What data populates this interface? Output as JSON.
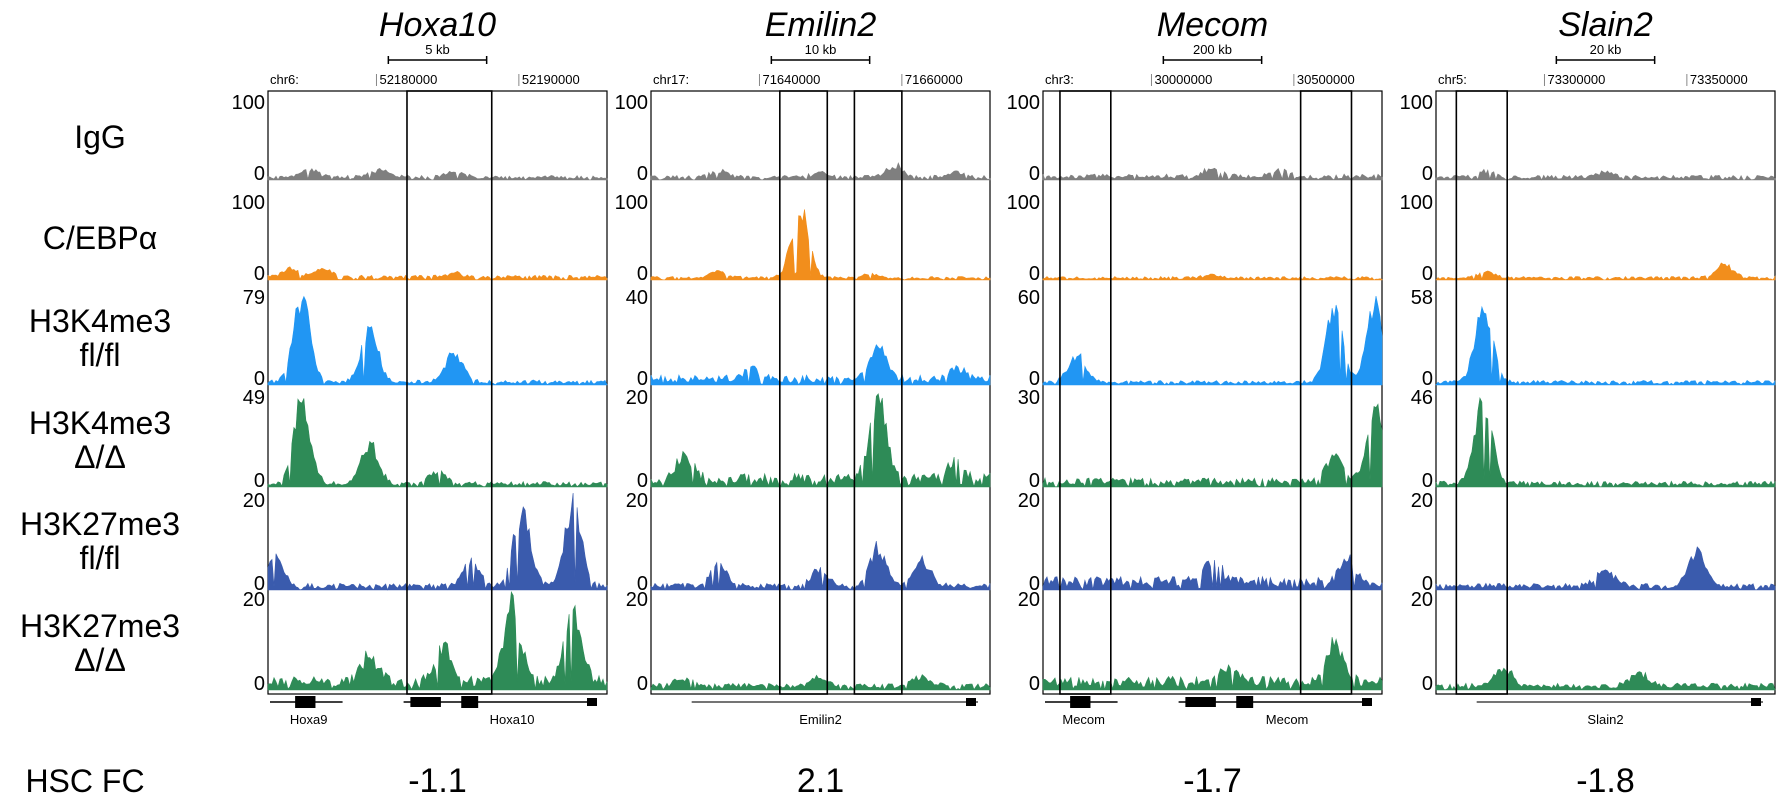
{
  "footer_label": "HSC FC",
  "tracks": [
    {
      "label_lines": [
        "IgG"
      ],
      "color": "#7f7f7f"
    },
    {
      "label_lines": [
        "C/EBPα"
      ],
      "color": "#f28e1c"
    },
    {
      "label_lines": [
        "H3K4me3",
        "fl/fl"
      ],
      "color": "#2196f3"
    },
    {
      "label_lines": [
        "H3K4me3",
        "Δ/Δ"
      ],
      "color": "#2e8b57"
    },
    {
      "label_lines": [
        "H3K27me3",
        "fl/fl"
      ],
      "color": "#3a5bad"
    },
    {
      "label_lines": [
        "H3K27me3",
        "Δ/Δ"
      ],
      "color": "#2e8b57"
    }
  ],
  "chart_data": [
    {
      "type": "area",
      "gene": "Hoxa10",
      "chrom_label": "chr6:",
      "coord_ticks": [
        "52180000",
        "52190000"
      ],
      "scale_bar_label": "5 kb",
      "track_ranges": [
        [
          0,
          100
        ],
        [
          0,
          100
        ],
        [
          0,
          79
        ],
        [
          0,
          49
        ],
        [
          0,
          20
        ],
        [
          0,
          20
        ]
      ],
      "highlight_regions": [
        [
          0.41,
          0.66
        ]
      ],
      "gene_models": [
        "Hoxa9",
        "Hoxa10"
      ],
      "hsc_fc": "-1.1",
      "signal_profiles": [
        {
          "track": "IgG",
          "peaks": [
            [
              0.12,
              10
            ],
            [
              0.33,
              10
            ],
            [
              0.55,
              7
            ]
          ],
          "baseline": 4
        },
        {
          "track": "C/EBPα",
          "peaks": [
            [
              0.07,
              11
            ],
            [
              0.17,
              11
            ],
            [
              0.55,
              5
            ]
          ],
          "baseline": 4
        },
        {
          "track": "H3K4me3 fl/fl",
          "peaks": [
            [
              0.1,
              75
            ],
            [
              0.3,
              48
            ],
            [
              0.55,
              28
            ]
          ],
          "baseline": 3
        },
        {
          "track": "H3K4me3 Δ/Δ",
          "peaks": [
            [
              0.1,
              47
            ],
            [
              0.3,
              22
            ],
            [
              0.5,
              6
            ]
          ],
          "baseline": 2
        },
        {
          "track": "H3K27me3 fl/fl",
          "peaks": [
            [
              0.02,
              7
            ],
            [
              0.6,
              6
            ],
            [
              0.75,
              17
            ],
            [
              0.9,
              18
            ]
          ],
          "baseline": 1
        },
        {
          "track": "H3K27me3 Δ/Δ",
          "peaks": [
            [
              0.3,
              6
            ],
            [
              0.52,
              8
            ],
            [
              0.72,
              18
            ],
            [
              0.9,
              17
            ]
          ],
          "baseline": 2
        }
      ]
    },
    {
      "type": "area",
      "gene": "Emilin2",
      "chrom_label": "chr17:",
      "coord_ticks": [
        "71640000",
        "71660000"
      ],
      "scale_bar_label": "10 kb",
      "track_ranges": [
        [
          0,
          100
        ],
        [
          0,
          100
        ],
        [
          0,
          40
        ],
        [
          0,
          20
        ],
        [
          0,
          20
        ],
        [
          0,
          20
        ]
      ],
      "highlight_regions": [
        [
          0.38,
          0.52
        ],
        [
          0.6,
          0.74
        ]
      ],
      "gene_models": [
        "Emilin2"
      ],
      "hsc_fc": "2.1",
      "signal_profiles": [
        {
          "track": "IgG",
          "peaks": [
            [
              0.2,
              8
            ],
            [
              0.5,
              6
            ],
            [
              0.72,
              15
            ],
            [
              0.9,
              7
            ]
          ],
          "baseline": 4
        },
        {
          "track": "C/EBPα",
          "peaks": [
            [
              0.2,
              9
            ],
            [
              0.44,
              95
            ],
            [
              0.65,
              5
            ]
          ],
          "baseline": 3
        },
        {
          "track": "H3K4me3 fl/fl",
          "peaks": [
            [
              0.3,
              5
            ],
            [
              0.67,
              17
            ],
            [
              0.9,
              5
            ]
          ],
          "baseline": 3
        },
        {
          "track": "H3K4me3 Δ/Δ",
          "peaks": [
            [
              0.1,
              5
            ],
            [
              0.67,
              19
            ],
            [
              0.9,
              4
            ]
          ],
          "baseline": 2
        },
        {
          "track": "H3K27me3 fl/fl",
          "peaks": [
            [
              0.2,
              5
            ],
            [
              0.5,
              4
            ],
            [
              0.67,
              9
            ],
            [
              0.8,
              6
            ]
          ],
          "baseline": 1
        },
        {
          "track": "H3K27me3 Δ/Δ",
          "peaks": [
            [
              0.1,
              2
            ],
            [
              0.5,
              2
            ],
            [
              0.8,
              2
            ]
          ],
          "baseline": 1
        }
      ]
    },
    {
      "type": "area",
      "gene": "Mecom",
      "chrom_label": "chr3:",
      "coord_ticks": [
        "30000000",
        "30500000"
      ],
      "scale_bar_label": "200 kb",
      "track_ranges": [
        [
          0,
          100
        ],
        [
          0,
          100
        ],
        [
          0,
          60
        ],
        [
          0,
          30
        ],
        [
          0,
          20
        ],
        [
          0,
          20
        ]
      ],
      "highlight_regions": [
        [
          0.05,
          0.2
        ],
        [
          0.76,
          0.91
        ]
      ],
      "gene_models": [
        "Mecom",
        "Mecom"
      ],
      "hsc_fc": "-1.7",
      "signal_profiles": [
        {
          "track": "IgG",
          "peaks": [
            [
              0.5,
              10
            ],
            [
              0.7,
              8
            ]
          ],
          "baseline": 5
        },
        {
          "track": "C/EBPα",
          "peaks": [
            [
              0.5,
              4
            ]
          ],
          "baseline": 3
        },
        {
          "track": "H3K4me3 fl/fl",
          "peaks": [
            [
              0.1,
              20
            ],
            [
              0.86,
              50
            ],
            [
              0.98,
              55
            ]
          ],
          "baseline": 2
        },
        {
          "track": "H3K4me3 Δ/Δ",
          "peaks": [
            [
              0.86,
              9
            ],
            [
              0.98,
              26
            ]
          ],
          "baseline": 2
        },
        {
          "track": "H3K27me3 fl/fl",
          "peaks": [
            [
              0.5,
              5
            ],
            [
              0.9,
              5
            ]
          ],
          "baseline": 2
        },
        {
          "track": "H3K27me3 Δ/Δ",
          "peaks": [
            [
              0.55,
              3
            ],
            [
              0.86,
              9
            ]
          ],
          "baseline": 2
        }
      ]
    },
    {
      "type": "area",
      "gene": "Slain2",
      "chrom_label": "chr5:",
      "coord_ticks": [
        "73300000",
        "73350000"
      ],
      "scale_bar_label": "20 kb",
      "track_ranges": [
        [
          0,
          100
        ],
        [
          0,
          100
        ],
        [
          0,
          58
        ],
        [
          0,
          46
        ],
        [
          0,
          20
        ],
        [
          0,
          20
        ]
      ],
      "highlight_regions": [
        [
          0.06,
          0.21
        ]
      ],
      "gene_models": [
        "Slain2"
      ],
      "hsc_fc": "-1.8",
      "signal_profiles": [
        {
          "track": "IgG",
          "peaks": [
            [
              0.15,
              8
            ],
            [
              0.5,
              6
            ]
          ],
          "baseline": 4
        },
        {
          "track": "C/EBPα",
          "peaks": [
            [
              0.15,
              9
            ],
            [
              0.85,
              18
            ]
          ],
          "baseline": 3
        },
        {
          "track": "H3K4me3 fl/fl",
          "peaks": [
            [
              0.14,
              54
            ]
          ],
          "baseline": 2
        },
        {
          "track": "H3K4me3 Δ/Δ",
          "peaks": [
            [
              0.14,
              43
            ]
          ],
          "baseline": 2
        },
        {
          "track": "H3K27me3 fl/fl",
          "peaks": [
            [
              0.5,
              4
            ],
            [
              0.77,
              8
            ]
          ],
          "baseline": 1
        },
        {
          "track": "H3K27me3 Δ/Δ",
          "peaks": [
            [
              0.2,
              4
            ],
            [
              0.6,
              3
            ]
          ],
          "baseline": 1
        }
      ]
    }
  ]
}
